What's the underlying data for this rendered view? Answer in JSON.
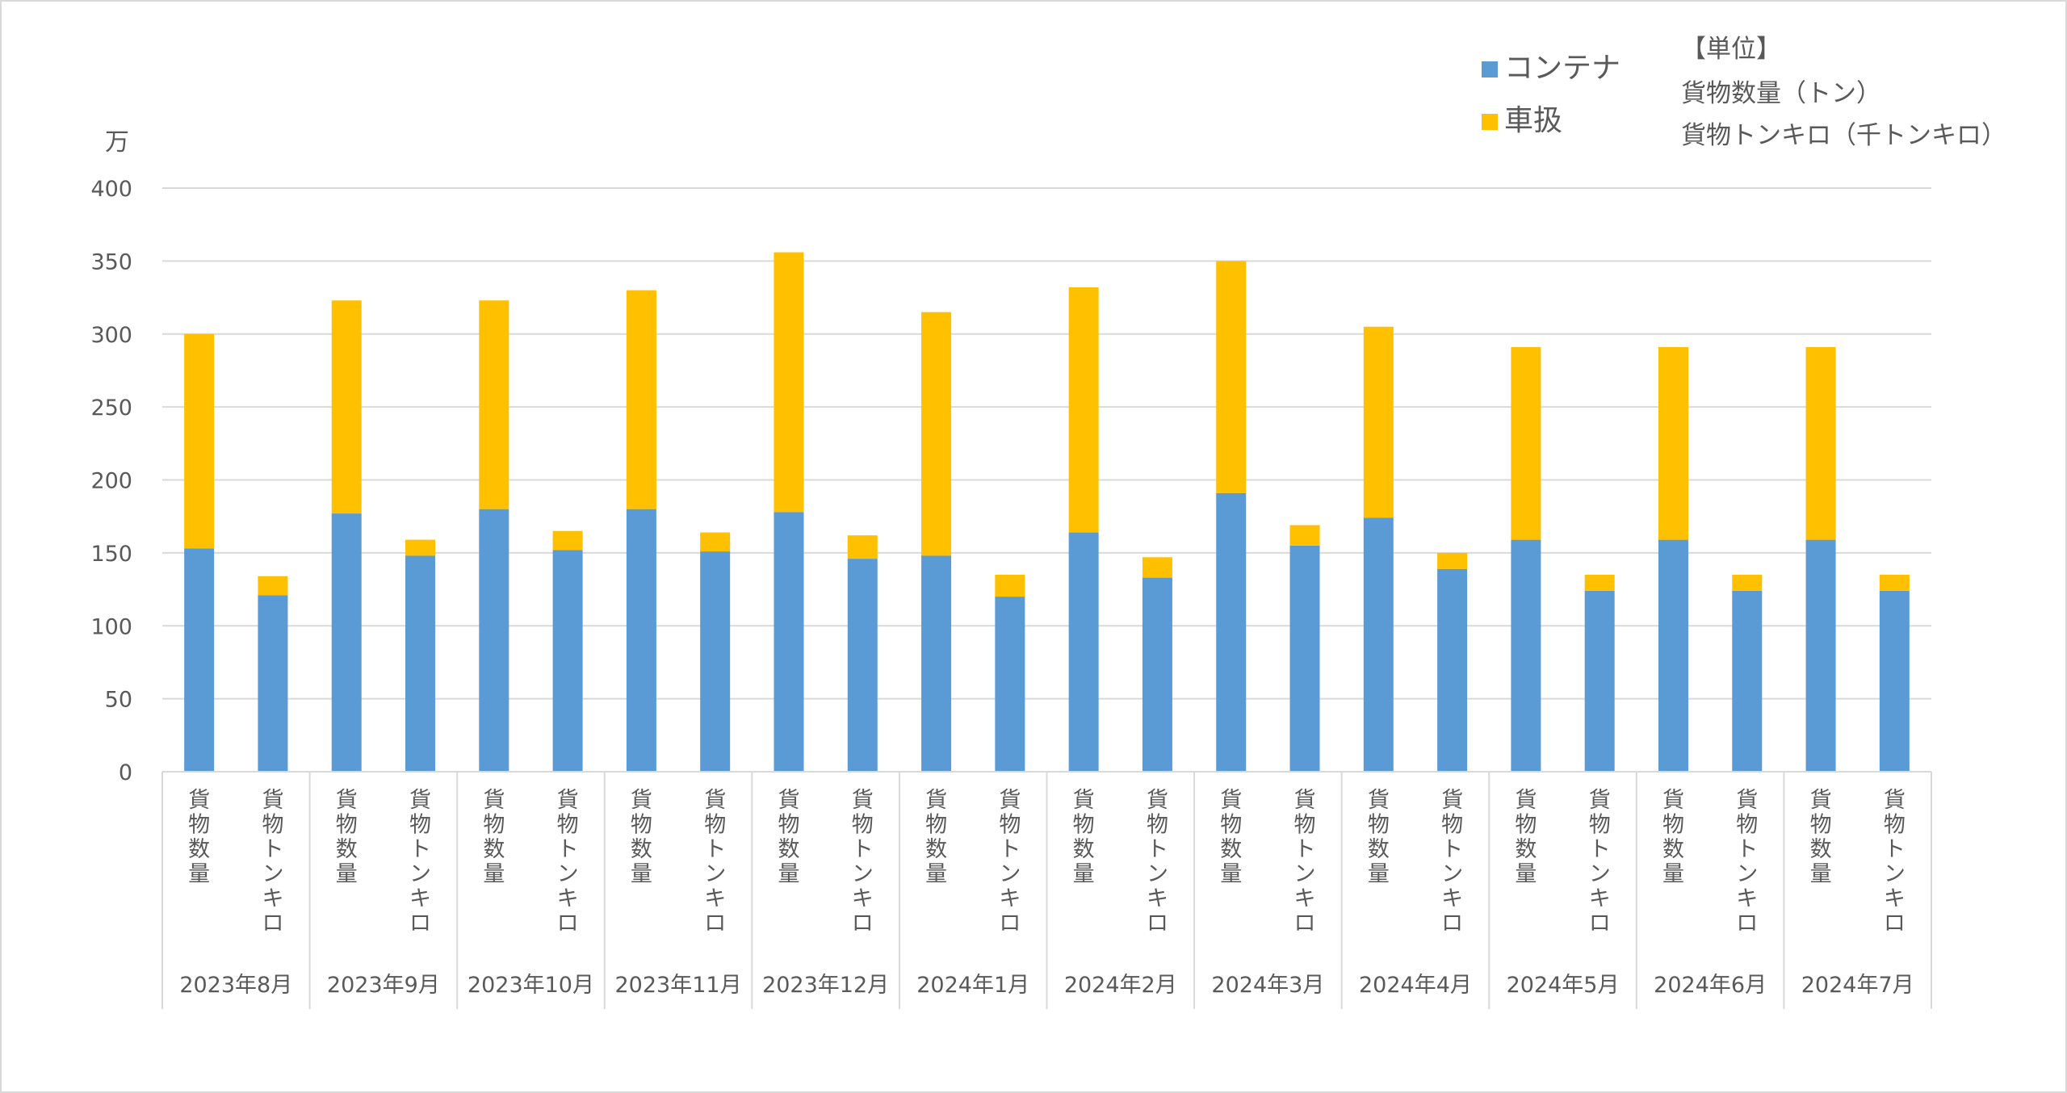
{
  "chart_data": {
    "type": "bar",
    "stacked": true,
    "ylabel": "万",
    "ylim": [
      0,
      400
    ],
    "yticks": [
      0,
      50,
      100,
      150,
      200,
      250,
      300,
      350,
      400
    ],
    "grid": true,
    "legend_position": "top-right",
    "sub_categories": [
      "貨物数量",
      "貨物トンキロ"
    ],
    "months": [
      "2023年8月",
      "2023年9月",
      "2023年10月",
      "2023年11月",
      "2023年12月",
      "2024年1月",
      "2024年2月",
      "2024年3月",
      "2024年4月",
      "2024年5月",
      "2024年6月",
      "2024年7月"
    ],
    "series": [
      {
        "name": "コンテナ",
        "color": "#5b9bd5",
        "values": [
          153,
          121,
          177,
          148,
          180,
          152,
          180,
          151,
          178,
          146,
          148,
          120,
          164,
          133,
          191,
          155,
          174,
          139,
          159,
          124,
          159,
          124,
          159,
          124
        ]
      },
      {
        "name": "車扱",
        "color": "#ffc000",
        "values": [
          147,
          13,
          146,
          11,
          143,
          13,
          150,
          13,
          178,
          16,
          167,
          15,
          168,
          14,
          159,
          14,
          131,
          11,
          132,
          11,
          132,
          11,
          132,
          11
        ]
      }
    ],
    "unit_note": {
      "title": "【単位】",
      "lines": [
        "貨物数量（トン）",
        "貨物トンキロ（千トンキロ）"
      ]
    }
  }
}
